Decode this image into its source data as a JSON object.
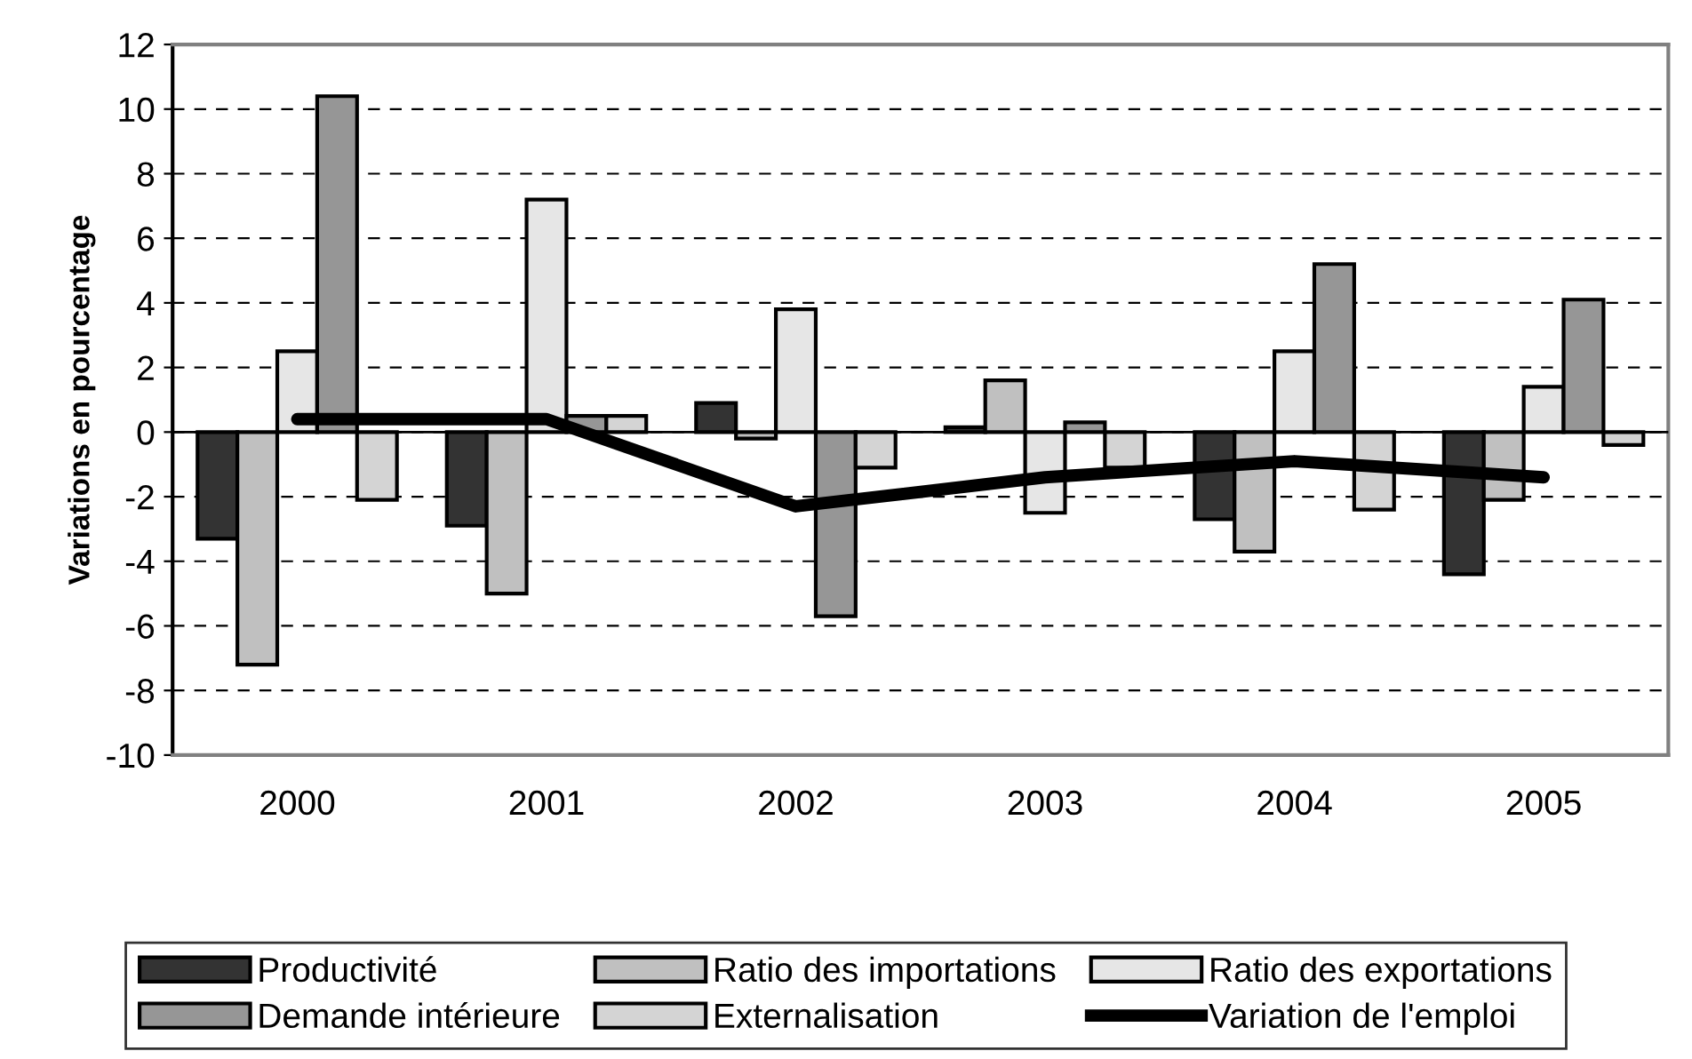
{
  "chart_data": {
    "type": "bar",
    "ylabel": "Variations en pourcentage",
    "categories": [
      "2000",
      "2001",
      "2002",
      "2003",
      "2004",
      "2005"
    ],
    "series": [
      {
        "name": "Productivité",
        "color": "#333333",
        "values": [
          -3.3,
          -2.9,
          0.9,
          0.15,
          -2.7,
          -4.4
        ]
      },
      {
        "name": "Ratio des importations",
        "color": "#c0c0c0",
        "values": [
          -7.2,
          -5.0,
          -0.2,
          1.6,
          -3.7,
          -2.1
        ]
      },
      {
        "name": "Ratio des exportations",
        "color": "#e6e6e6",
        "values": [
          2.5,
          7.2,
          3.8,
          -2.5,
          2.5,
          1.4
        ]
      },
      {
        "name": "Demande intérieure",
        "color": "#969696",
        "values": [
          10.4,
          0.5,
          -5.7,
          0.3,
          5.2,
          4.1
        ]
      },
      {
        "name": "Externalisation",
        "color": "#d4d4d4",
        "values": [
          -2.1,
          0.5,
          -1.1,
          -1.1,
          -2.4,
          -0.4
        ]
      },
      {
        "name": "Variation de l'emploi",
        "type": "line",
        "color": "#000000",
        "values": [
          0.4,
          0.4,
          -2.3,
          -1.4,
          -0.9,
          -1.4
        ]
      }
    ],
    "ylim": [
      -10,
      12
    ],
    "yticks": [
      -10,
      -8,
      -6,
      -4,
      -2,
      0,
      2,
      4,
      6,
      8,
      10,
      12
    ],
    "grid": "y",
    "legend": "bottom",
    "line_style": "solid",
    "marker": "none"
  }
}
